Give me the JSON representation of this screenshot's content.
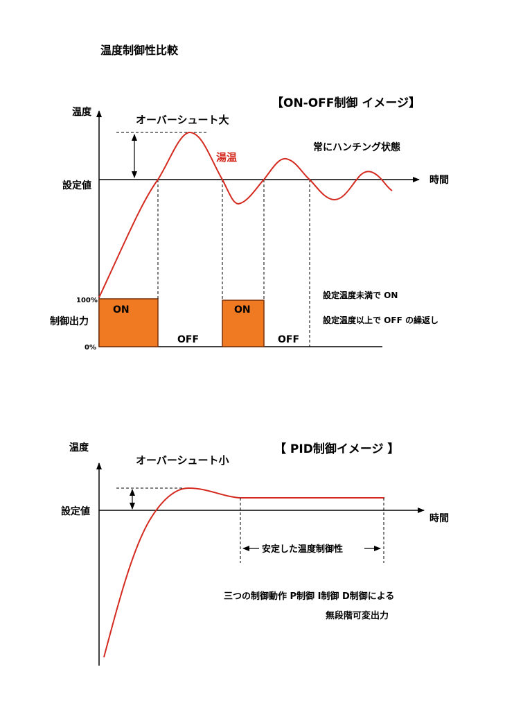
{
  "page_title": "温度制御性比較",
  "colors": {
    "curve": "#d42a1f",
    "on_fill": "#f07a22",
    "on_stroke": "#b24a10",
    "axis": "#000000"
  },
  "onoff": {
    "heading": "【ON-OFF制御 イメージ】",
    "y_axis_label": "温度",
    "setpoint_label": "設定値",
    "x_axis_label": "時間",
    "overshoot_label": "オーバーシュート大",
    "curve_label": "湯温",
    "hunting_label": "常にハンチング状態",
    "output_label": "制御出力",
    "out_100": "100%",
    "out_0": "0%",
    "on_label_1": "ON",
    "off_label_1": "OFF",
    "on_label_2": "ON",
    "off_label_2": "OFF",
    "rule_on": "設定温度未満で ON",
    "rule_off": "設定温度以上で OFF の繰返し"
  },
  "pid": {
    "heading": "【 PID制御イメージ 】",
    "y_axis_label": "温度",
    "setpoint_label": "設定値",
    "x_axis_label": "時間",
    "overshoot_label": "オーバーシュート小",
    "stable_label": "安定した温度制御性",
    "note_line1": "三つの制御動作 P制御 I制御 D制御による",
    "note_line2": "無段階可変出力"
  }
}
